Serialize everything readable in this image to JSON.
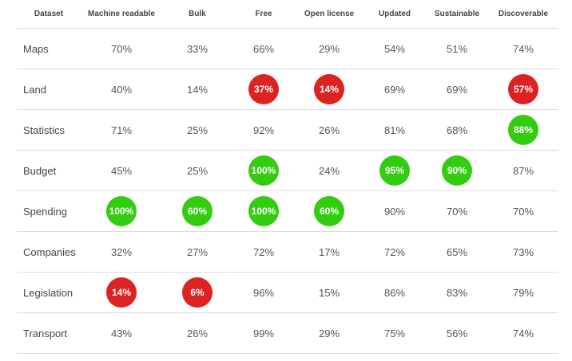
{
  "colors": {
    "good": "#33cc11",
    "bad": "#dd2222"
  },
  "columns": [
    "Dataset",
    "Machine readable",
    "Bulk",
    "Free",
    "Open license",
    "Updated",
    "Sustainable",
    "Discoverable"
  ],
  "rows": [
    {
      "name": "Maps",
      "cells": [
        {
          "v": "70%"
        },
        {
          "v": "33%"
        },
        {
          "v": "66%"
        },
        {
          "v": "29%"
        },
        {
          "v": "54%"
        },
        {
          "v": "51%"
        },
        {
          "v": "74%"
        }
      ]
    },
    {
      "name": "Land",
      "cells": [
        {
          "v": "40%"
        },
        {
          "v": "14%"
        },
        {
          "v": "37%",
          "h": "red"
        },
        {
          "v": "14%",
          "h": "red"
        },
        {
          "v": "69%"
        },
        {
          "v": "69%"
        },
        {
          "v": "57%",
          "h": "red"
        }
      ]
    },
    {
      "name": "Statistics",
      "cells": [
        {
          "v": "71%"
        },
        {
          "v": "25%"
        },
        {
          "v": "92%"
        },
        {
          "v": "26%"
        },
        {
          "v": "81%"
        },
        {
          "v": "68%"
        },
        {
          "v": "88%",
          "h": "green"
        }
      ]
    },
    {
      "name": "Budget",
      "cells": [
        {
          "v": "45%"
        },
        {
          "v": "25%"
        },
        {
          "v": "100%",
          "h": "green"
        },
        {
          "v": "24%"
        },
        {
          "v": "95%",
          "h": "green"
        },
        {
          "v": "90%",
          "h": "green"
        },
        {
          "v": "87%"
        }
      ]
    },
    {
      "name": "Spending",
      "cells": [
        {
          "v": "100%",
          "h": "green"
        },
        {
          "v": "60%",
          "h": "green"
        },
        {
          "v": "100%",
          "h": "green"
        },
        {
          "v": "60%",
          "h": "green"
        },
        {
          "v": "90%"
        },
        {
          "v": "70%"
        },
        {
          "v": "70%"
        }
      ]
    },
    {
      "name": "Companies",
      "cells": [
        {
          "v": "32%"
        },
        {
          "v": "27%"
        },
        {
          "v": "72%"
        },
        {
          "v": "17%"
        },
        {
          "v": "72%"
        },
        {
          "v": "65%"
        },
        {
          "v": "73%"
        }
      ]
    },
    {
      "name": "Legislation",
      "cells": [
        {
          "v": "14%",
          "h": "red"
        },
        {
          "v": "6%",
          "h": "red"
        },
        {
          "v": "96%"
        },
        {
          "v": "15%"
        },
        {
          "v": "86%"
        },
        {
          "v": "83%"
        },
        {
          "v": "79%"
        }
      ]
    },
    {
      "name": "Transport",
      "cells": [
        {
          "v": "43%"
        },
        {
          "v": "26%"
        },
        {
          "v": "99%"
        },
        {
          "v": "29%"
        },
        {
          "v": "75%"
        },
        {
          "v": "56%"
        },
        {
          "v": "74%"
        }
      ]
    }
  ]
}
